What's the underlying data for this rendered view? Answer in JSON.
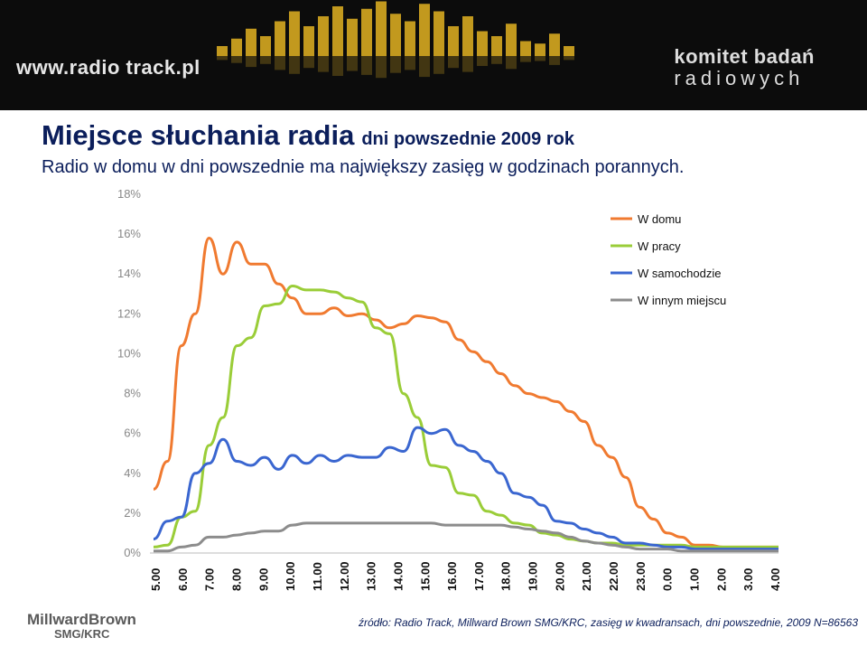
{
  "header": {
    "logo_left": "www.radio track.pl",
    "logo_right_line1": "komitet badań",
    "logo_right_line2": "radiowych"
  },
  "title": "Miejsce słuchania radia",
  "title_sub": "dni powszednie 2009 rok",
  "subtitle": "Radio w domu w dni powszednie ma największy zasięg w godzinach porannych.",
  "footer": {
    "logo_line1": "MillwardBrown",
    "logo_line2": "SMG/KRC",
    "source": "źródło: Radio Track, Millward Brown SMG/KRC, zasięg w kwadransach, dni powszednie, 2009 N=86563"
  },
  "colors": {
    "w_domu": "#f07a30",
    "w_pracy": "#9acd38",
    "w_samochodzie": "#3a66d0",
    "w_innym": "#8c8c8c"
  },
  "chart_data": {
    "type": "line",
    "title": "",
    "xlabel": "",
    "ylabel": "",
    "ylim": [
      0,
      18
    ],
    "y_ticks": [
      "0%",
      "2%",
      "4%",
      "6%",
      "8%",
      "10%",
      "12%",
      "14%",
      "16%",
      "18%"
    ],
    "x_ticks": [
      "5.00",
      "6.00",
      "7.00",
      "8.00",
      "9.00",
      "10.00",
      "11.00",
      "12.00",
      "13.00",
      "14.00",
      "15.00",
      "16.00",
      "17.00",
      "18.00",
      "19.00",
      "20.00",
      "21.00",
      "22.00",
      "23.00",
      "0.00",
      "1.00",
      "2.00",
      "3.00",
      "4.00"
    ],
    "legend_position": "top-right",
    "series": [
      {
        "name": "W domu",
        "values": [
          3.2,
          4.6,
          10.4,
          12.0,
          15.8,
          14.0,
          15.6,
          14.5,
          14.5,
          13.5,
          12.8,
          12.0,
          12.0,
          12.3,
          11.9,
          12.0,
          11.7,
          11.3,
          11.5,
          11.9,
          11.8,
          11.6,
          10.7,
          10.1,
          9.6,
          9.0,
          8.4,
          8.0,
          7.8,
          7.6,
          7.1,
          6.6,
          5.4,
          4.8,
          3.8,
          2.3,
          1.7,
          1.0,
          0.8,
          0.4,
          0.4,
          0.3,
          0.3,
          0.3,
          0.3,
          0.3
        ]
      },
      {
        "name": "W pracy",
        "values": [
          0.3,
          0.4,
          1.8,
          2.1,
          5.4,
          6.8,
          10.4,
          10.8,
          12.4,
          12.5,
          13.4,
          13.2,
          13.2,
          13.1,
          12.8,
          12.6,
          11.3,
          11.0,
          8.0,
          6.8,
          4.4,
          4.3,
          3.0,
          2.9,
          2.1,
          1.9,
          1.5,
          1.4,
          1.0,
          0.9,
          0.7,
          0.6,
          0.5,
          0.5,
          0.4,
          0.4,
          0.4,
          0.4,
          0.4,
          0.3,
          0.3,
          0.3,
          0.3,
          0.3,
          0.3,
          0.3
        ]
      },
      {
        "name": "W samochodzie",
        "values": [
          0.7,
          1.6,
          1.8,
          4.0,
          4.5,
          5.7,
          4.6,
          4.4,
          4.8,
          4.2,
          4.9,
          4.5,
          4.9,
          4.6,
          4.9,
          4.8,
          4.8,
          5.3,
          5.1,
          6.3,
          6.0,
          6.2,
          5.4,
          5.1,
          4.6,
          4.0,
          3.0,
          2.8,
          2.4,
          1.6,
          1.5,
          1.2,
          1.0,
          0.8,
          0.5,
          0.5,
          0.4,
          0.3,
          0.3,
          0.2,
          0.2,
          0.2,
          0.2,
          0.2,
          0.2,
          0.2
        ]
      },
      {
        "name": "W innym miejscu",
        "values": [
          0.1,
          0.1,
          0.3,
          0.4,
          0.8,
          0.8,
          0.9,
          1.0,
          1.1,
          1.1,
          1.4,
          1.5,
          1.5,
          1.5,
          1.5,
          1.5,
          1.5,
          1.5,
          1.5,
          1.5,
          1.5,
          1.4,
          1.4,
          1.4,
          1.4,
          1.4,
          1.3,
          1.2,
          1.1,
          1.0,
          0.8,
          0.6,
          0.5,
          0.4,
          0.3,
          0.2,
          0.2,
          0.2,
          0.1,
          0.1,
          0.1,
          0.1,
          0.1,
          0.1,
          0.1,
          0.1
        ]
      }
    ]
  }
}
